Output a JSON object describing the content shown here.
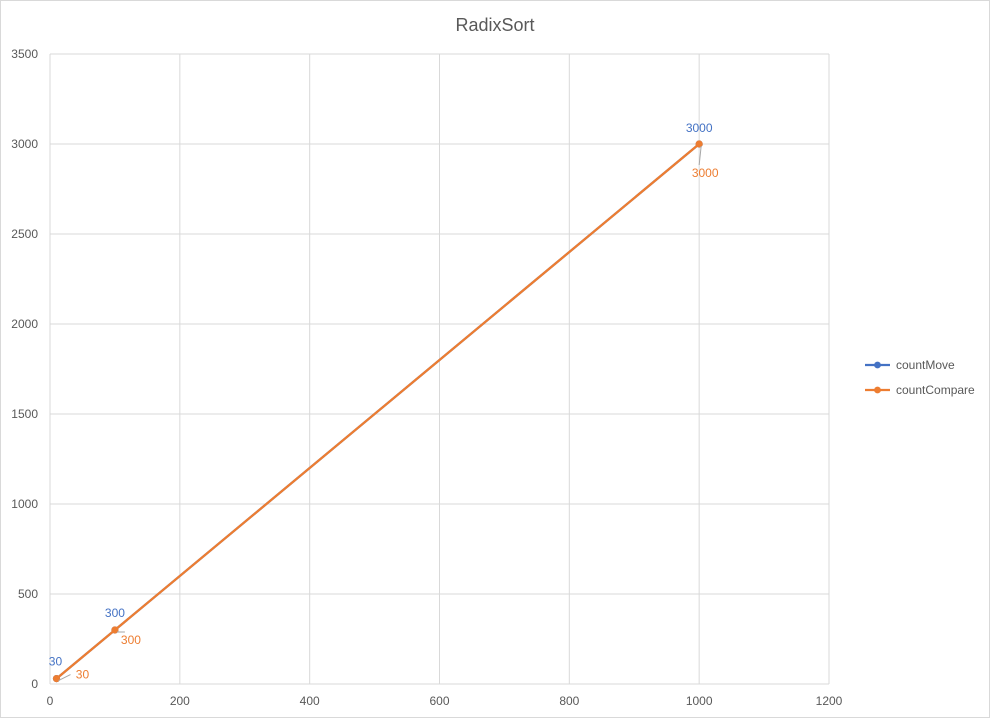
{
  "chart_data": {
    "type": "scatter",
    "title": "RadixSort",
    "xlabel": "",
    "ylabel": "",
    "xlim": [
      0,
      1200
    ],
    "ylim": [
      0,
      3500
    ],
    "xticks": [
      0,
      200,
      400,
      600,
      800,
      1000,
      1200
    ],
    "yticks": [
      0,
      500,
      1000,
      1500,
      2000,
      2500,
      3000,
      3500
    ],
    "grid": true,
    "legend_position": "right",
    "lines": true,
    "markers": true,
    "data_labels": true,
    "series": [
      {
        "name": "countMove",
        "color": "#4472C4",
        "x": [
          10,
          100,
          1000
        ],
        "y": [
          30,
          300,
          3000
        ],
        "labels": [
          "30",
          "300",
          "3000"
        ]
      },
      {
        "name": "countCompare",
        "color": "#ED7D31",
        "x": [
          10,
          100,
          1000
        ],
        "y": [
          30,
          300,
          3000
        ],
        "labels": [
          "30",
          "300",
          "3000"
        ]
      }
    ]
  }
}
